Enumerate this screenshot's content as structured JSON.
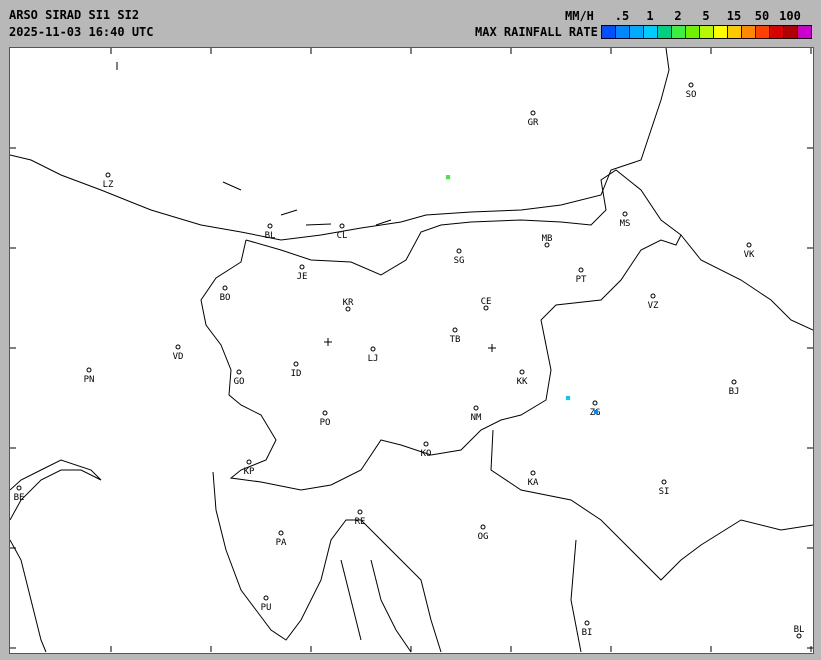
{
  "header": {
    "title": "ARSO SIRAD SI1 SI2",
    "timestamp": "2025-11-03 16:40 UTC",
    "units": "MM/H",
    "legend_title": "MAX RAINFALL RATE"
  },
  "legend": {
    "ticks": [
      ".5",
      "1",
      "2",
      "5",
      "15",
      "50",
      "100"
    ],
    "colors": [
      "#0050ff",
      "#0088ff",
      "#00aaff",
      "#00ccff",
      "#00d080",
      "#40ee40",
      "#70f000",
      "#b8f800",
      "#ffff00",
      "#ffc800",
      "#ff8800",
      "#ff4000",
      "#d80000",
      "#b00000",
      "#cc00cc"
    ]
  },
  "map": {
    "cities": [
      "SO",
      "GR",
      "LZ",
      "BL",
      "CL",
      "MS",
      "MB",
      "VK",
      "SG",
      "JE",
      "PT",
      "BO",
      "VZ",
      "KR",
      "CE",
      "TB",
      "VD",
      "LJ",
      "PN",
      "ID",
      "GO",
      "KK",
      "BJ",
      "ZG",
      "NM",
      "PO",
      "KO",
      "KP",
      "KA",
      "SI",
      "BE",
      "RE",
      "OG",
      "PA",
      "PU",
      "BI",
      "BL"
    ],
    "rain_cells": [
      {
        "rate_color": "#40ee40"
      },
      {
        "rate_color": "#00ccff"
      },
      {
        "rate_color": "#0088ff"
      }
    ]
  }
}
